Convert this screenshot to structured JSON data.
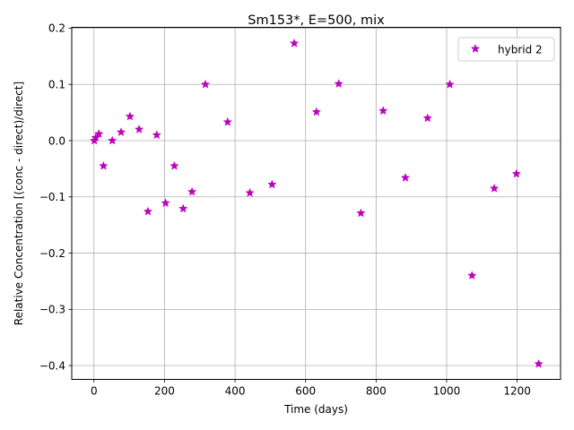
{
  "chart_data": {
    "type": "scatter",
    "title": "Sm153*, E=500, mix",
    "xlabel": "Time (days)",
    "ylabel": "Relative Concentration [(conc - direct)/direct]",
    "xlim": [
      -63,
      1323
    ],
    "ylim": [
      -0.4245,
      0.2015
    ],
    "xticks": [
      0,
      200,
      400,
      600,
      800,
      1000,
      1200
    ],
    "xtick_labels": [
      "0",
      "200",
      "400",
      "600",
      "800",
      "1000",
      "1200"
    ],
    "yticks": [
      -0.4,
      -0.3,
      -0.2,
      -0.1,
      0.0,
      0.1,
      0.2
    ],
    "ytick_labels": [
      "−0.4",
      "−0.3",
      "−0.2",
      "−0.1",
      "0.0",
      "0.1",
      "0.2"
    ],
    "grid": true,
    "legend_position": "upper right",
    "marker": "star",
    "series": [
      {
        "name": "hybrid 2",
        "color": "#bf00bf",
        "x": [
          1,
          5,
          14,
          27,
          52,
          77,
          102,
          128,
          153,
          178,
          203,
          228,
          253,
          278,
          316,
          379,
          442,
          505,
          568,
          631,
          694,
          757,
          820,
          883,
          946,
          1009,
          1072,
          1135,
          1198,
          1261
        ],
        "y": [
          0.0,
          0.005,
          0.012,
          -0.045,
          0.0,
          0.015,
          0.043,
          0.02,
          -0.126,
          0.01,
          -0.111,
          -0.045,
          -0.121,
          -0.091,
          0.1,
          0.033,
          -0.093,
          -0.078,
          0.173,
          0.051,
          0.101,
          -0.129,
          0.053,
          -0.066,
          0.04,
          0.1,
          -0.24,
          -0.085,
          -0.059,
          -0.397
        ]
      }
    ]
  }
}
